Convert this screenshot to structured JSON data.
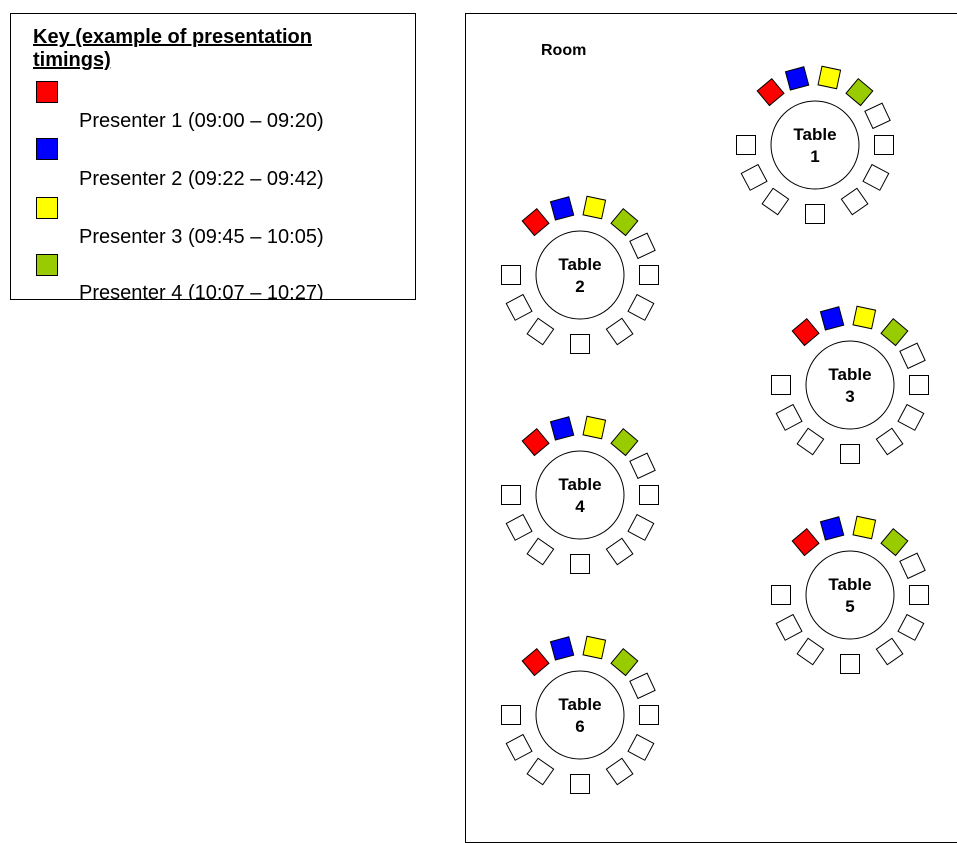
{
  "key": {
    "title": "Key (example of presentation timings)",
    "items": [
      {
        "color": "#ff0000",
        "label": "Presenter 1 (09:00 – 09:20)"
      },
      {
        "color": "#0000ff",
        "label": "Presenter 2 (09:22 – 09:42)"
      },
      {
        "color": "#ffff00",
        "label": "Presenter 3 (09:45 – 10:05)"
      },
      {
        "color": "#99cc00",
        "label": "Presenter 4 (10:07 – 10:27)"
      }
    ]
  },
  "room": {
    "label": "Room",
    "tables": [
      {
        "line1": "Table",
        "line2": "1"
      },
      {
        "line1": "Table",
        "line2": "2"
      },
      {
        "line1": "Table",
        "line2": "3"
      },
      {
        "line1": "Table",
        "line2": "4"
      },
      {
        "line1": "Table",
        "line2": "5"
      },
      {
        "line1": "Table",
        "line2": "6"
      }
    ]
  },
  "seat_colors": [
    "#ff0000",
    "#0000ff",
    "#ffff00",
    "#99cc00"
  ],
  "empty_seat_color": "#ffffff"
}
